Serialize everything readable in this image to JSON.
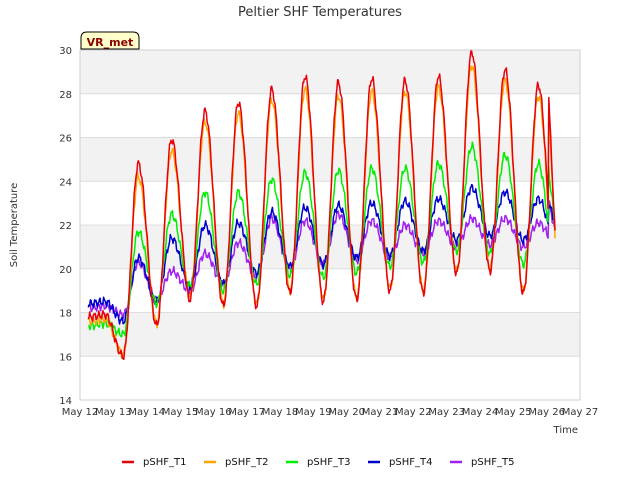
{
  "chart_data": {
    "type": "line",
    "title": "Peltier SHF Temperatures",
    "xlabel": "Time",
    "ylabel": "Soil Temperature",
    "badge": "VR_met",
    "ylim": [
      14,
      30
    ],
    "y_ticks": [
      "14",
      "16",
      "18",
      "20",
      "22",
      "24",
      "26",
      "28",
      "30"
    ],
    "x_ticks": [
      "May 12",
      "May 13",
      "May 14",
      "May 15",
      "May 16",
      "May 17",
      "May 18",
      "May 19",
      "May 20",
      "May 21",
      "May 22",
      "May 23",
      "May 24",
      "May 25",
      "May 26",
      "May 27"
    ],
    "grid": true,
    "legend_position": "bottom",
    "x": [
      "May 12",
      "May 13",
      "May 14",
      "May 15",
      "May 16",
      "May 17",
      "May 18",
      "May 19",
      "May 20",
      "May 21",
      "May 22",
      "May 23",
      "May 24",
      "May 25",
      "May 26"
    ],
    "series": [
      {
        "name": "pSHF_T1",
        "color": "#e8000b",
        "daily_min": [
          17.8,
          16.0,
          17.4,
          18.6,
          18.3,
          18.3,
          18.9,
          18.5,
          18.6,
          19.0,
          18.9,
          19.8,
          19.9,
          18.9,
          18.5
        ],
        "daily_max": [
          17.9,
          24.8,
          25.9,
          27.2,
          27.6,
          28.2,
          28.8,
          28.5,
          28.7,
          28.6,
          28.8,
          29.9,
          29.1,
          28.4,
          28.3
        ],
        "end": 21.6
      },
      {
        "name": "pSHF_T2",
        "color": "#ffa500",
        "daily_min": [
          17.6,
          16.1,
          17.5,
          18.7,
          18.4,
          18.4,
          19.0,
          18.6,
          18.7,
          19.1,
          19.0,
          19.9,
          20.0,
          19.0,
          18.6
        ],
        "daily_max": [
          17.7,
          24.2,
          25.4,
          26.7,
          27.1,
          27.7,
          28.2,
          27.9,
          28.1,
          28.1,
          28.3,
          29.3,
          28.6,
          27.9,
          27.8
        ],
        "end": 21.5
      },
      {
        "name": "pSHF_T3",
        "color": "#00ee00",
        "daily_min": [
          17.4,
          17.0,
          18.4,
          19.2,
          19.0,
          19.3,
          19.7,
          19.6,
          19.8,
          20.1,
          20.3,
          20.8,
          20.7,
          20.2,
          19.6
        ],
        "daily_max": [
          17.5,
          21.7,
          22.5,
          23.5,
          23.5,
          24.1,
          24.4,
          24.5,
          24.6,
          24.6,
          24.8,
          25.6,
          25.2,
          24.8,
          24.7
        ],
        "end": 22.0
      },
      {
        "name": "pSHF_T4",
        "color": "#0000cc",
        "daily_min": [
          18.4,
          17.6,
          18.5,
          19.2,
          19.3,
          19.8,
          20.1,
          20.2,
          20.5,
          20.6,
          20.8,
          21.3,
          21.5,
          21.3,
          21.0
        ],
        "daily_max": [
          18.5,
          20.5,
          21.4,
          22.0,
          22.1,
          22.6,
          22.8,
          22.9,
          23.0,
          23.1,
          23.2,
          23.7,
          23.5,
          23.2,
          23.1
        ],
        "end": 22.1
      },
      {
        "name": "pSHF_T5",
        "color": "#a020f0",
        "daily_min": [
          18.2,
          17.9,
          18.6,
          19.0,
          19.3,
          19.6,
          20.0,
          20.2,
          20.4,
          20.5,
          20.7,
          21.0,
          21.1,
          21.0,
          21.0
        ],
        "daily_max": [
          18.3,
          20.3,
          19.9,
          20.7,
          21.2,
          22.3,
          22.2,
          22.5,
          22.2,
          22.0,
          22.2,
          22.3,
          22.3,
          22.1,
          23.2
        ],
        "end": 21.7
      }
    ]
  }
}
